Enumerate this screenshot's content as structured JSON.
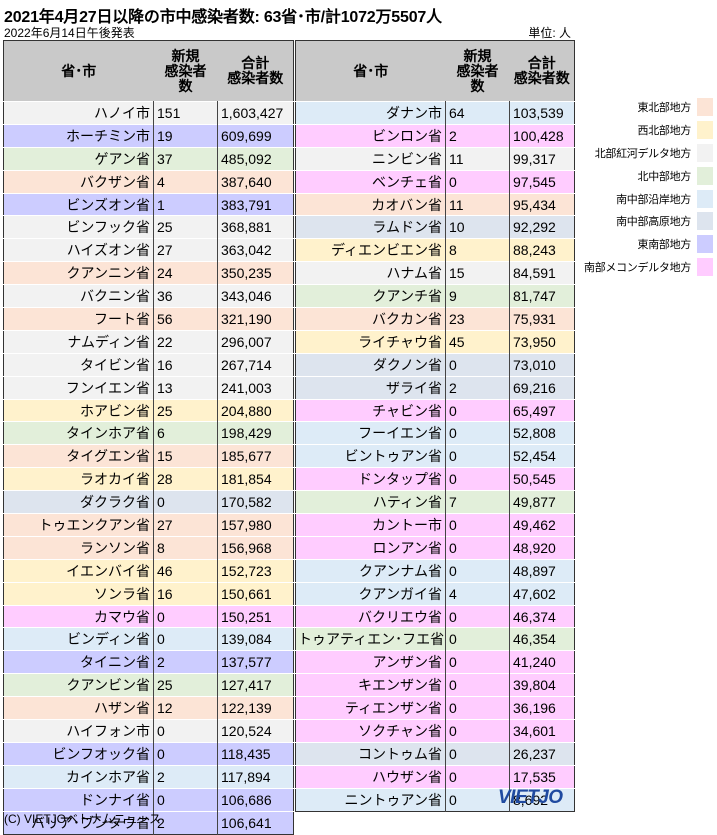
{
  "title": "2021年4月27日以降の市中感染者数: 63省･市/計1072万5507人",
  "date": "2022年6月14日午後発表",
  "unit": "単位: 人",
  "headers": {
    "name": "省･市",
    "new_line1": "新規",
    "new_line2": "感染者",
    "new_line3": "数",
    "total_line1": "合計",
    "total_line2": "感染者数"
  },
  "colors": {
    "東北部地方": "#fce4d6",
    "西北部地方": "#fff2cc",
    "北部紅河デルタ地方": "#f2f2f2",
    "北中部地方": "#e2efda",
    "南中部沿岸地方": "#ddebf7",
    "南中部高原地方": "#dde4ee",
    "東南部地方": "#ccccff",
    "南部メコンデルタ地方": "#ffccff"
  },
  "left_rows": [
    {
      "name": "ハノイ市",
      "new": "151",
      "total": "1,603,427",
      "region": "北部紅河デルタ地方"
    },
    {
      "name": "ホーチミン市",
      "new": "19",
      "total": "609,699",
      "region": "東南部地方"
    },
    {
      "name": "ゲアン省",
      "new": "37",
      "total": "485,092",
      "region": "北中部地方"
    },
    {
      "name": "バクザン省",
      "new": "4",
      "total": "387,640",
      "region": "東北部地方"
    },
    {
      "name": "ビンズオン省",
      "new": "1",
      "total": "383,791",
      "region": "東南部地方"
    },
    {
      "name": "ビンフック省",
      "new": "25",
      "total": "368,881",
      "region": "北部紅河デルタ地方"
    },
    {
      "name": "ハイズオン省",
      "new": "27",
      "total": "363,042",
      "region": "北部紅河デルタ地方"
    },
    {
      "name": "クアンニン省",
      "new": "24",
      "total": "350,235",
      "region": "東北部地方"
    },
    {
      "name": "バクニン省",
      "new": "36",
      "total": "343,046",
      "region": "北部紅河デルタ地方"
    },
    {
      "name": "フート省",
      "new": "56",
      "total": "321,190",
      "region": "東北部地方"
    },
    {
      "name": "ナムディン省",
      "new": "22",
      "total": "296,007",
      "region": "北部紅河デルタ地方"
    },
    {
      "name": "タイビン省",
      "new": "16",
      "total": "267,714",
      "region": "北部紅河デルタ地方"
    },
    {
      "name": "フンイエン省",
      "new": "13",
      "total": "241,003",
      "region": "北部紅河デルタ地方"
    },
    {
      "name": "ホアビン省",
      "new": "25",
      "total": "204,880",
      "region": "西北部地方"
    },
    {
      "name": "タインホア省",
      "new": "6",
      "total": "198,429",
      "region": "北中部地方"
    },
    {
      "name": "タイグエン省",
      "new": "15",
      "total": "185,677",
      "region": "東北部地方"
    },
    {
      "name": "ラオカイ省",
      "new": "28",
      "total": "181,854",
      "region": "西北部地方"
    },
    {
      "name": "ダクラク省",
      "new": "0",
      "total": "170,582",
      "region": "南中部高原地方"
    },
    {
      "name": "トゥエンクアン省",
      "new": "27",
      "total": "157,980",
      "region": "東北部地方"
    },
    {
      "name": "ランソン省",
      "new": "8",
      "total": "156,968",
      "region": "東北部地方"
    },
    {
      "name": "イエンバイ省",
      "new": "46",
      "total": "152,723",
      "region": "西北部地方"
    },
    {
      "name": "ソンラ省",
      "new": "16",
      "total": "150,661",
      "region": "西北部地方"
    },
    {
      "name": "カマウ省",
      "new": "0",
      "total": "150,251",
      "region": "南部メコンデルタ地方"
    },
    {
      "name": "ビンディン省",
      "new": "0",
      "total": "139,084",
      "region": "南中部沿岸地方"
    },
    {
      "name": "タイニン省",
      "new": "2",
      "total": "137,577",
      "region": "東南部地方"
    },
    {
      "name": "クアンビン省",
      "new": "25",
      "total": "127,417",
      "region": "北中部地方"
    },
    {
      "name": "ハザン省",
      "new": "12",
      "total": "122,139",
      "region": "東北部地方"
    },
    {
      "name": "ハイフォン市",
      "new": "0",
      "total": "120,524",
      "region": "北部紅河デルタ地方"
    },
    {
      "name": "ビンフオック省",
      "new": "0",
      "total": "118,435",
      "region": "東南部地方"
    },
    {
      "name": "カインホア省",
      "new": "2",
      "total": "117,894",
      "region": "南中部沿岸地方"
    },
    {
      "name": "ドンナイ省",
      "new": "0",
      "total": "106,686",
      "region": "東南部地方"
    },
    {
      "name": "バリア･ブンタウ省",
      "new": "2",
      "total": "106,641",
      "region": "東南部地方"
    }
  ],
  "right_rows": [
    {
      "name": "ダナン市",
      "new": "64",
      "total": "103,539",
      "region": "南中部沿岸地方"
    },
    {
      "name": "ビンロン省",
      "new": "2",
      "total": "100,428",
      "region": "南部メコンデルタ地方"
    },
    {
      "name": "ニンビン省",
      "new": "11",
      "total": "99,317",
      "region": "北部紅河デルタ地方"
    },
    {
      "name": "ベンチェ省",
      "new": "0",
      "total": "97,545",
      "region": "南部メコンデルタ地方"
    },
    {
      "name": "カオバン省",
      "new": "11",
      "total": "95,434",
      "region": "東北部地方"
    },
    {
      "name": "ラムドン省",
      "new": "10",
      "total": "92,292",
      "region": "南中部高原地方"
    },
    {
      "name": "ディエンビエン省",
      "new": "8",
      "total": "88,243",
      "region": "西北部地方"
    },
    {
      "name": "ハナム省",
      "new": "15",
      "total": "84,591",
      "region": "北部紅河デルタ地方"
    },
    {
      "name": "クアンチ省",
      "new": "9",
      "total": "81,747",
      "region": "北中部地方"
    },
    {
      "name": "バクカン省",
      "new": "23",
      "total": "75,931",
      "region": "東北部地方"
    },
    {
      "name": "ライチャウ省",
      "new": "45",
      "total": "73,950",
      "region": "西北部地方"
    },
    {
      "name": "ダクノン省",
      "new": "0",
      "total": "73,010",
      "region": "南中部高原地方"
    },
    {
      "name": "ザライ省",
      "new": "2",
      "total": "69,216",
      "region": "南中部高原地方"
    },
    {
      "name": "チャビン省",
      "new": "0",
      "total": "65,497",
      "region": "南部メコンデルタ地方"
    },
    {
      "name": "フーイエン省",
      "new": "0",
      "total": "52,808",
      "region": "南中部沿岸地方"
    },
    {
      "name": "ビントゥアン省",
      "new": "0",
      "total": "52,454",
      "region": "南中部沿岸地方"
    },
    {
      "name": "ドンタップ省",
      "new": "0",
      "total": "50,545",
      "region": "南部メコンデルタ地方"
    },
    {
      "name": "ハティン省",
      "new": "7",
      "total": "49,877",
      "region": "北中部地方"
    },
    {
      "name": "カントー市",
      "new": "0",
      "total": "49,462",
      "region": "南部メコンデルタ地方"
    },
    {
      "name": "ロンアン省",
      "new": "0",
      "total": "48,920",
      "region": "南部メコンデルタ地方"
    },
    {
      "name": "クアンナム省",
      "new": "0",
      "total": "48,897",
      "region": "南中部沿岸地方"
    },
    {
      "name": "クアンガイ省",
      "new": "4",
      "total": "47,602",
      "region": "南中部沿岸地方"
    },
    {
      "name": "バクリエウ省",
      "new": "0",
      "total": "46,374",
      "region": "南部メコンデルタ地方"
    },
    {
      "name": "トゥアティエン･フエ省",
      "new": "0",
      "total": "46,354",
      "region": "北中部地方"
    },
    {
      "name": "アンザン省",
      "new": "0",
      "total": "41,240",
      "region": "南部メコンデルタ地方"
    },
    {
      "name": "キエンザン省",
      "new": "0",
      "total": "39,804",
      "region": "南部メコンデルタ地方"
    },
    {
      "name": "ティエンザン省",
      "new": "0",
      "total": "36,196",
      "region": "南部メコンデルタ地方"
    },
    {
      "name": "ソクチャン省",
      "new": "0",
      "total": "34,601",
      "region": "南部メコンデルタ地方"
    },
    {
      "name": "コントゥム省",
      "new": "0",
      "total": "26,237",
      "region": "南中部高原地方"
    },
    {
      "name": "ハウザン省",
      "new": "0",
      "total": "17,535",
      "region": "南部メコンデルタ地方"
    },
    {
      "name": "ニントゥアン省",
      "new": "0",
      "total": "8,692",
      "region": "南中部沿岸地方"
    }
  ],
  "legend": [
    "東北部地方",
    "西北部地方",
    "北部紅河デルタ地方",
    "北中部地方",
    "南中部沿岸地方",
    "南中部高原地方",
    "東南部地方",
    "南部メコンデルタ地方"
  ],
  "logo": {
    "part1": "VIET",
    "part2": "JO"
  },
  "copyright": "(C) VIETJOベトナムニュース"
}
